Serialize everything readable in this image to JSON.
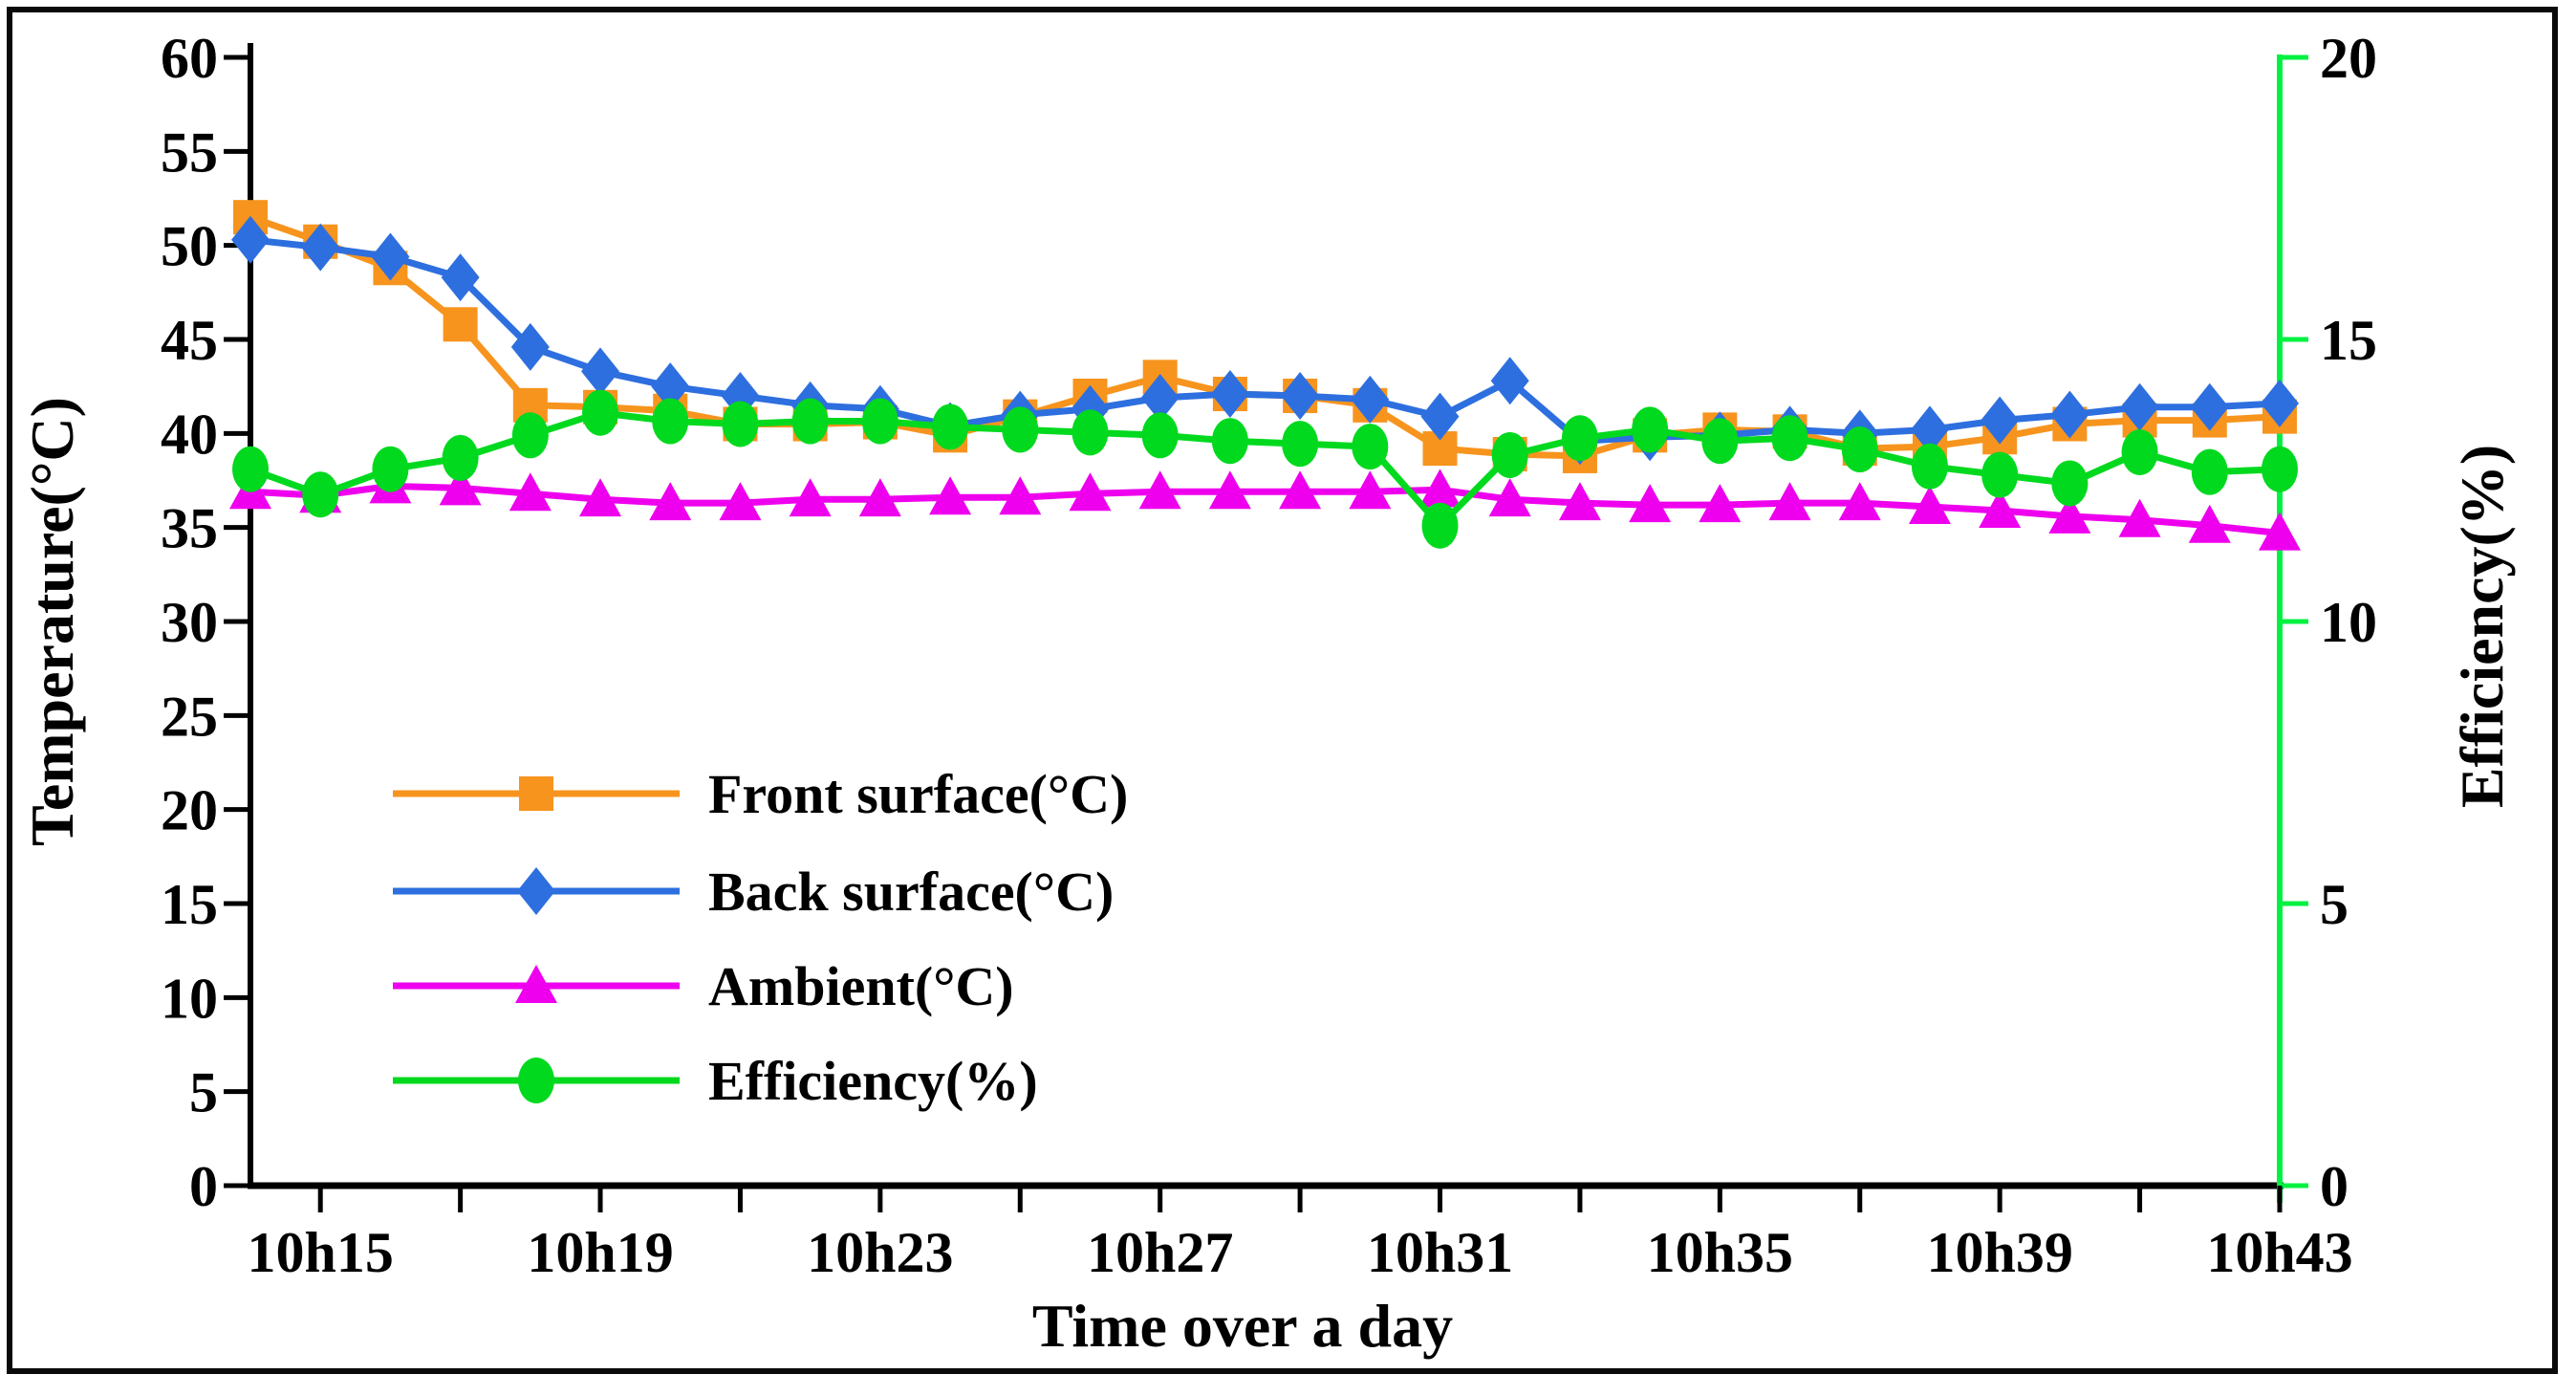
{
  "chart_data": {
    "type": "line",
    "title": "",
    "x_label": "Time over a day",
    "y_left_label": "Temperature(°C)",
    "y_right_label": "Efficiency(%)",
    "y_left": {
      "min": 0,
      "max": 60,
      "step": 5,
      "tick_labels": [
        "0",
        "5",
        "10",
        "15",
        "20",
        "25",
        "30",
        "35",
        "40",
        "45",
        "50",
        "55",
        "60"
      ]
    },
    "y_right": {
      "min": 0,
      "max": 20,
      "step": 5,
      "tick_labels": [
        "0",
        "5",
        "10",
        "15",
        "20"
      ]
    },
    "x_minor_tick_interval_minutes": 2,
    "x_tick_labels": [
      "10h15",
      "10h19",
      "10h23",
      "10h27",
      "10h31",
      "10h35",
      "10h39",
      "10h43"
    ],
    "x_categories": [
      "10h14",
      "10h15",
      "10h16",
      "10h17",
      "10h18",
      "10h19",
      "10h20",
      "10h21",
      "10h22",
      "10h23",
      "10h24",
      "10h25",
      "10h26",
      "10h27",
      "10h28",
      "10h29",
      "10h30",
      "10h31",
      "10h32",
      "10h33",
      "10h34",
      "10h35",
      "10h36",
      "10h37",
      "10h38",
      "10h39",
      "10h40",
      "10h41",
      "10h42",
      "10h43"
    ],
    "axis_colors": {
      "left": "#000000",
      "bottom": "#000000",
      "right": "#00F141"
    },
    "grid": false,
    "legend_position": "inside-left-lower",
    "series": [
      {
        "name": "Front surface(°C)",
        "key": "front-surface",
        "axis": "left",
        "marker": "square",
        "color": "#F7941E",
        "values": [
          51.5,
          50.2,
          48.8,
          45.8,
          41.5,
          41.4,
          41.2,
          40.5,
          40.5,
          40.6,
          39.9,
          40.9,
          42.0,
          43.0,
          42.1,
          42.0,
          41.5,
          39.2,
          38.9,
          38.8,
          39.9,
          40.2,
          40.1,
          39.2,
          39.3,
          39.8,
          40.5,
          40.7,
          40.7,
          40.9
        ]
      },
      {
        "name": "Back surface(°C)",
        "key": "back-surface",
        "axis": "left",
        "marker": "diamond",
        "color": "#2E6FDF",
        "values": [
          50.3,
          49.9,
          49.4,
          48.3,
          44.6,
          43.3,
          42.5,
          42.0,
          41.5,
          41.3,
          40.4,
          41.0,
          41.3,
          41.9,
          42.1,
          42.0,
          41.8,
          40.9,
          42.8,
          39.6,
          39.8,
          39.9,
          40.2,
          40.0,
          40.2,
          40.7,
          41.0,
          41.4,
          41.4,
          41.6
        ]
      },
      {
        "name": "Ambient(°C)",
        "key": "ambient",
        "axis": "left",
        "marker": "triangle",
        "color": "#EE00EE",
        "values": [
          36.9,
          36.7,
          37.2,
          37.1,
          36.8,
          36.5,
          36.3,
          36.3,
          36.5,
          36.5,
          36.6,
          36.6,
          36.8,
          36.9,
          36.9,
          36.9,
          36.9,
          37.0,
          36.5,
          36.3,
          36.2,
          36.2,
          36.3,
          36.3,
          36.1,
          35.9,
          35.6,
          35.4,
          35.1,
          34.7
        ]
      },
      {
        "name": "Efficiency(%)",
        "key": "efficiency",
        "axis": "right",
        "marker": "circle",
        "color": "#00D91E",
        "values": [
          12.7,
          12.25,
          12.7,
          12.9,
          13.3,
          13.7,
          13.55,
          13.5,
          13.55,
          13.55,
          13.45,
          13.4,
          13.35,
          13.3,
          13.2,
          13.15,
          13.1,
          11.7,
          12.95,
          13.25,
          13.4,
          13.2,
          13.25,
          13.05,
          12.75,
          12.6,
          12.45,
          13.0,
          12.65,
          12.7
        ]
      }
    ]
  }
}
